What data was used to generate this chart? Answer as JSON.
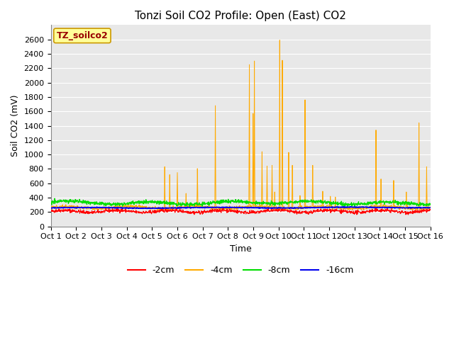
{
  "title": "Tonzi Soil CO2 Profile: Open (East) CO2",
  "ylabel": "Soil CO2 (mV)",
  "xlabel": "Time",
  "xlim": [
    0,
    15
  ],
  "ylim": [
    0,
    2800
  ],
  "yticks": [
    0,
    200,
    400,
    600,
    800,
    1000,
    1200,
    1400,
    1600,
    1800,
    2000,
    2200,
    2400,
    2600
  ],
  "xtick_labels": [
    "Oct 1",
    "Oct 2",
    "Oct 3",
    "Oct 4",
    "Oct 5",
    "Oct 6",
    "Oct 7",
    "Oct 8",
    "Oct 9",
    "Oct 10",
    "Oct 11",
    "Oct 12",
    "Oct 13",
    "Oct 14",
    "Oct 15",
    "Oct 16"
  ],
  "legend_label": "TZ_soilco2",
  "colors": {
    "minus2cm": "#ff0000",
    "minus4cm": "#ffaa00",
    "minus8cm": "#00dd00",
    "minus16cm": "#0000ee"
  },
  "line_labels": [
    "-2cm",
    "-4cm",
    "-8cm",
    "-16cm"
  ],
  "fig_bg_color": "#ffffff",
  "plot_bg_color": "#e8e8e8",
  "grid_color": "#ffffff",
  "title_fontsize": 11,
  "axis_fontsize": 9,
  "tick_fontsize": 8,
  "legend_box_color": "#ffff99",
  "legend_box_edge": "#cc9900",
  "legend_text_color": "#990000",
  "spike_times": [
    4.5,
    4.7,
    5.0,
    5.35,
    5.8,
    6.5,
    7.85,
    8.0,
    8.05,
    8.35,
    8.55,
    8.75,
    8.85,
    9.05,
    9.15,
    9.4,
    9.55,
    9.85,
    10.05,
    10.35,
    10.75,
    11.05,
    11.25,
    12.85,
    13.05,
    13.55,
    14.05,
    14.55,
    14.85
  ],
  "spike_heights": [
    830,
    720,
    750,
    460,
    805,
    1680,
    2250,
    1570,
    2300,
    1040,
    840,
    850,
    480,
    2590,
    2310,
    1030,
    850,
    430,
    1760,
    850,
    490,
    420,
    410,
    1340,
    660,
    640,
    480,
    1440,
    830
  ]
}
